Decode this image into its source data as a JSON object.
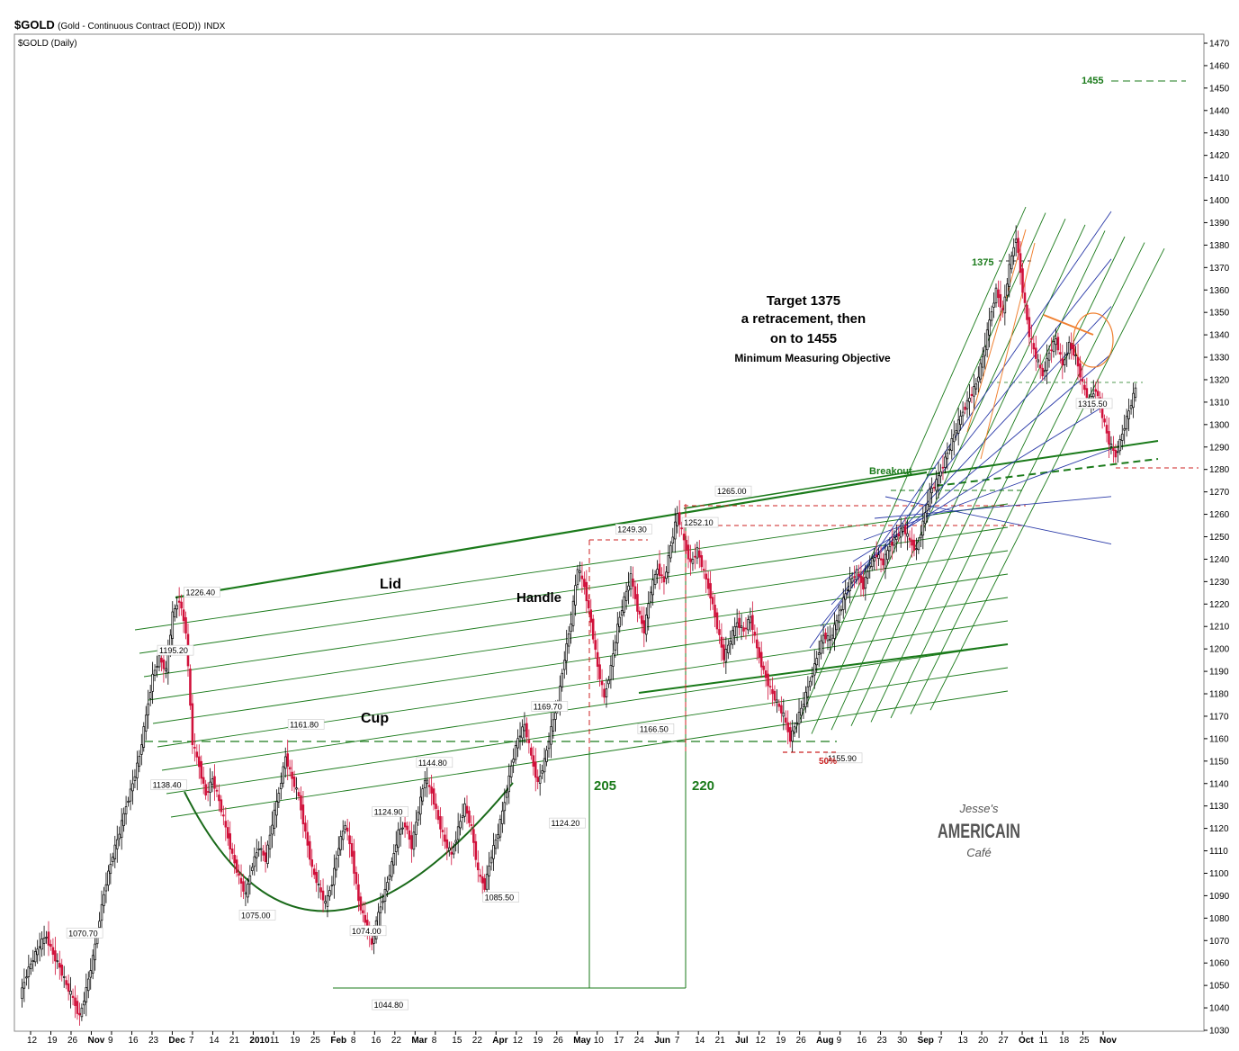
{
  "header": {
    "symbol": "$GOLD",
    "name": "(Gold - Continuous Contract (EOD))",
    "exchange": "INDX",
    "subtitle": "$GOLD (Daily)"
  },
  "colors": {
    "up": "#000000",
    "down": "#d0103a",
    "trend": "#1a7a1a",
    "channel": "#2a3aa8",
    "resistance_dash": "#cc2222",
    "orange": "#f08030"
  },
  "chart_data": {
    "type": "candlestick",
    "title": "$GOLD (Daily)",
    "ylim": [
      1030,
      1475
    ],
    "y_ticks": [
      1030,
      1040,
      1050,
      1060,
      1070,
      1080,
      1090,
      1100,
      1110,
      1120,
      1130,
      1140,
      1150,
      1160,
      1170,
      1180,
      1190,
      1200,
      1210,
      1220,
      1230,
      1240,
      1250,
      1260,
      1270,
      1280,
      1290,
      1300,
      1310,
      1320,
      1330,
      1340,
      1350,
      1360,
      1370,
      1380,
      1390,
      1400,
      1410,
      1420,
      1430,
      1440,
      1450,
      1460,
      1470
    ],
    "x_ticks": [
      "12",
      "19",
      "26",
      "Nov",
      "9",
      "16",
      "23",
      "Dec",
      "7",
      "14",
      "21",
      "2010",
      "11",
      "19",
      "25",
      "Feb",
      "8",
      "16",
      "22",
      "Mar",
      "8",
      "15",
      "22",
      "Apr",
      "12",
      "19",
      "26",
      "May",
      "10",
      "17",
      "24",
      "Jun",
      "7",
      "14",
      "21",
      "Jul",
      "12",
      "19",
      "26",
      "Aug",
      "9",
      "16",
      "23",
      "30",
      "Sep",
      "7",
      "13",
      "20",
      "27",
      "Oct",
      "11",
      "18",
      "25",
      "Nov"
    ],
    "close_path": [
      [
        0,
        1045
      ],
      [
        3,
        1055
      ],
      [
        6,
        1062
      ],
      [
        9,
        1068
      ],
      [
        12,
        1072
      ],
      [
        15,
        1064
      ],
      [
        18,
        1058
      ],
      [
        21,
        1050
      ],
      [
        24,
        1044
      ],
      [
        27,
        1036
      ],
      [
        30,
        1048
      ],
      [
        33,
        1062
      ],
      [
        36,
        1080
      ],
      [
        39,
        1096
      ],
      [
        42,
        1108
      ],
      [
        45,
        1118
      ],
      [
        48,
        1130
      ],
      [
        51,
        1140
      ],
      [
        54,
        1152
      ],
      [
        57,
        1170
      ],
      [
        60,
        1188
      ],
      [
        63,
        1196
      ],
      [
        66,
        1190
      ],
      [
        69,
        1215
      ],
      [
        72,
        1222
      ],
      [
        75,
        1208
      ],
      [
        78,
        1158
      ],
      [
        81,
        1148
      ],
      [
        84,
        1135
      ],
      [
        87,
        1142
      ],
      [
        90,
        1132
      ],
      [
        93,
        1120
      ],
      [
        96,
        1108
      ],
      [
        99,
        1098
      ],
      [
        102,
        1090
      ],
      [
        105,
        1104
      ],
      [
        108,
        1112
      ],
      [
        111,
        1106
      ],
      [
        114,
        1122
      ],
      [
        117,
        1136
      ],
      [
        120,
        1152
      ],
      [
        123,
        1142
      ],
      [
        126,
        1134
      ],
      [
        129,
        1118
      ],
      [
        132,
        1102
      ],
      [
        135,
        1094
      ],
      [
        138,
        1086
      ],
      [
        141,
        1096
      ],
      [
        144,
        1112
      ],
      [
        147,
        1122
      ],
      [
        150,
        1108
      ],
      [
        153,
        1088
      ],
      [
        156,
        1078
      ],
      [
        159,
        1068
      ],
      [
        162,
        1082
      ],
      [
        165,
        1092
      ],
      [
        168,
        1104
      ],
      [
        171,
        1118
      ],
      [
        174,
        1122
      ],
      [
        177,
        1112
      ],
      [
        180,
        1128
      ],
      [
        183,
        1142
      ],
      [
        186,
        1136
      ],
      [
        189,
        1124
      ],
      [
        192,
        1114
      ],
      [
        195,
        1108
      ],
      [
        198,
        1120
      ],
      [
        201,
        1130
      ],
      [
        204,
        1120
      ],
      [
        207,
        1100
      ],
      [
        210,
        1094
      ],
      [
        213,
        1108
      ],
      [
        216,
        1118
      ],
      [
        219,
        1132
      ],
      [
        222,
        1148
      ],
      [
        225,
        1160
      ],
      [
        228,
        1166
      ],
      [
        231,
        1152
      ],
      [
        234,
        1140
      ],
      [
        237,
        1150
      ],
      [
        240,
        1164
      ],
      [
        243,
        1176
      ],
      [
        246,
        1196
      ],
      [
        249,
        1212
      ],
      [
        252,
        1236
      ],
      [
        255,
        1228
      ],
      [
        258,
        1212
      ],
      [
        261,
        1192
      ],
      [
        264,
        1178
      ],
      [
        267,
        1192
      ],
      [
        270,
        1210
      ],
      [
        273,
        1222
      ],
      [
        276,
        1232
      ],
      [
        279,
        1218
      ],
      [
        282,
        1208
      ],
      [
        285,
        1226
      ],
      [
        288,
        1236
      ],
      [
        291,
        1230
      ],
      [
        294,
        1246
      ],
      [
        297,
        1260
      ],
      [
        300,
        1248
      ],
      [
        303,
        1238
      ],
      [
        306,
        1244
      ],
      [
        309,
        1234
      ],
      [
        312,
        1224
      ],
      [
        315,
        1210
      ],
      [
        318,
        1196
      ],
      [
        321,
        1204
      ],
      [
        324,
        1212
      ],
      [
        327,
        1208
      ],
      [
        330,
        1214
      ],
      [
        333,
        1200
      ],
      [
        336,
        1190
      ],
      [
        339,
        1182
      ],
      [
        342,
        1176
      ],
      [
        345,
        1170
      ],
      [
        348,
        1160
      ],
      [
        351,
        1168
      ],
      [
        354,
        1176
      ],
      [
        357,
        1186
      ],
      [
        360,
        1196
      ],
      [
        363,
        1206
      ],
      [
        366,
        1204
      ],
      [
        369,
        1212
      ],
      [
        372,
        1222
      ],
      [
        375,
        1230
      ],
      [
        378,
        1234
      ],
      [
        381,
        1228
      ],
      [
        384,
        1238
      ],
      [
        387,
        1242
      ],
      [
        390,
        1238
      ],
      [
        393,
        1246
      ],
      [
        396,
        1250
      ],
      [
        399,
        1254
      ],
      [
        402,
        1248
      ],
      [
        405,
        1244
      ],
      [
        408,
        1256
      ],
      [
        411,
        1270
      ],
      [
        414,
        1274
      ],
      [
        417,
        1282
      ],
      [
        420,
        1290
      ],
      [
        423,
        1298
      ],
      [
        426,
        1306
      ],
      [
        429,
        1312
      ],
      [
        432,
        1318
      ],
      [
        435,
        1330
      ],
      [
        438,
        1346
      ],
      [
        441,
        1360
      ],
      [
        444,
        1350
      ],
      [
        447,
        1370
      ],
      [
        450,
        1384
      ],
      [
        453,
        1360
      ],
      [
        456,
        1340
      ],
      [
        459,
        1330
      ],
      [
        462,
        1322
      ],
      [
        465,
        1332
      ],
      [
        468,
        1338
      ],
      [
        471,
        1326
      ],
      [
        474,
        1336
      ],
      [
        477,
        1330
      ],
      [
        480,
        1318
      ],
      [
        483,
        1310
      ],
      [
        486,
        1316
      ],
      [
        489,
        1304
      ],
      [
        492,
        1292
      ],
      [
        495,
        1286
      ],
      [
        498,
        1296
      ],
      [
        501,
        1306
      ],
      [
        504,
        1316
      ]
    ],
    "price_labels": [
      {
        "text": "1070.70",
        "x": 22,
        "y": 1072
      },
      {
        "text": "1226.40",
        "x": 75,
        "y": 1224
      },
      {
        "text": "1195.20",
        "x": 63,
        "y": 1198
      },
      {
        "text": "1138.40",
        "x": 60,
        "y": 1138
      },
      {
        "text": "1161.80",
        "x": 122,
        "y": 1165
      },
      {
        "text": "1075.00",
        "x": 100,
        "y": 1080
      },
      {
        "text": "1144.80",
        "x": 180,
        "y": 1148
      },
      {
        "text": "1124.90",
        "x": 160,
        "y": 1126
      },
      {
        "text": "1074.00",
        "x": 150,
        "y": 1073
      },
      {
        "text": "1044.80",
        "x": 160,
        "y": 1040
      },
      {
        "text": "1085.50",
        "x": 210,
        "y": 1088
      },
      {
        "text": "1169.70",
        "x": 232,
        "y": 1173
      },
      {
        "text": "1124.20",
        "x": 240,
        "y": 1121
      },
      {
        "text": "1249.30",
        "x": 270,
        "y": 1252
      },
      {
        "text": "1166.50",
        "x": 280,
        "y": 1163
      },
      {
        "text": "1252.10",
        "x": 300,
        "y": 1255
      },
      {
        "text": "1265.00",
        "x": 315,
        "y": 1269
      },
      {
        "text": "1155.90",
        "x": 365,
        "y": 1150
      },
      {
        "text": "1315.50",
        "x": 478,
        "y": 1308
      }
    ],
    "annotations": [
      {
        "text": "Target 1375"
      },
      {
        "text": "a retracement,  then"
      },
      {
        "text": "on  to 1455"
      },
      {
        "text": "Minimum Measuring Objective"
      },
      {
        "text": "Lid"
      },
      {
        "text": "Handle"
      },
      {
        "text": "Cup"
      },
      {
        "text": "205"
      },
      {
        "text": "220"
      },
      {
        "text": "Breakout"
      },
      {
        "text": "1375"
      },
      {
        "text": "1455"
      },
      {
        "text": "50%"
      }
    ],
    "watermark": {
      "line1": "Jesse's",
      "line2": "AMERICAIN",
      "line3": "Café"
    }
  }
}
